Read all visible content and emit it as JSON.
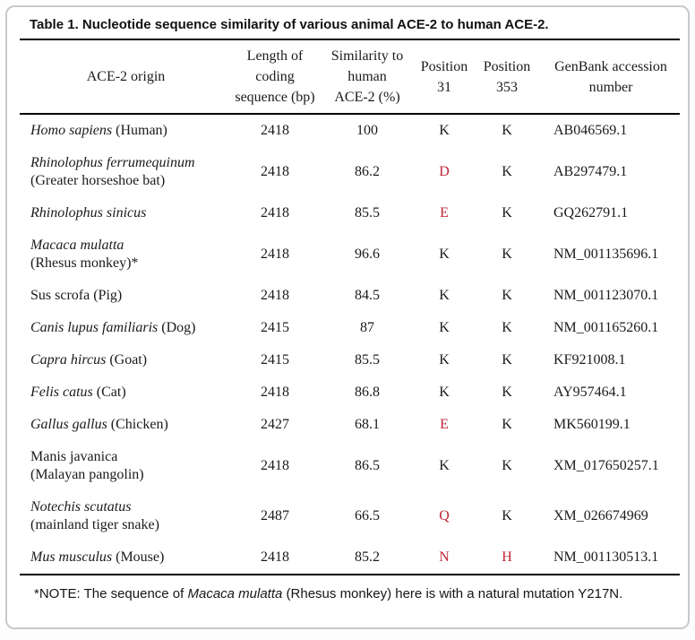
{
  "title": "Table 1. Nucleotide sequence similarity of various animal ACE-2 to human ACE-2.",
  "colors": {
    "red": "#c02538",
    "frame_border": "#c9c9c9",
    "rule": "#000000"
  },
  "table": {
    "columns": [
      {
        "label": "ACE-2 origin"
      },
      {
        "label": "Length of\ncoding\nsequence (bp)"
      },
      {
        "label": "Similarity to\nhuman\nACE-2 (%)"
      },
      {
        "label": "Position\n31"
      },
      {
        "label": "Position\n353"
      },
      {
        "label": "GenBank accession\nnumber"
      }
    ],
    "rows": [
      {
        "origin_segments": [
          {
            "text": "Homo sapiens",
            "italic": true
          },
          {
            "text": " (Human)",
            "italic": false
          }
        ],
        "origin_line2": "",
        "length_bp": "2418",
        "similarity_pct": "100",
        "position_31": {
          "text": "K",
          "red": false
        },
        "position_353": {
          "text": "K",
          "red": false
        },
        "genbank": "AB046569.1"
      },
      {
        "origin_segments": [
          {
            "text": "Rhinolophus ferrumequinum",
            "italic": true
          }
        ],
        "origin_line2": "(Greater horseshoe bat)",
        "length_bp": "2418",
        "similarity_pct": "86.2",
        "position_31": {
          "text": "D",
          "red": true
        },
        "position_353": {
          "text": "K",
          "red": false
        },
        "genbank": "AB297479.1"
      },
      {
        "origin_segments": [
          {
            "text": "Rhinolophus sinicus",
            "italic": true
          }
        ],
        "origin_line2": "",
        "length_bp": "2418",
        "similarity_pct": "85.5",
        "position_31": {
          "text": "E",
          "red": true
        },
        "position_353": {
          "text": "K",
          "red": false
        },
        "genbank": "GQ262791.1"
      },
      {
        "origin_segments": [
          {
            "text": "Macaca mulatta",
            "italic": true
          }
        ],
        "origin_line2": "(Rhesus monkey)*",
        "length_bp": "2418",
        "similarity_pct": "96.6",
        "position_31": {
          "text": "K",
          "red": false
        },
        "position_353": {
          "text": "K",
          "red": false
        },
        "genbank": "NM_001135696.1"
      },
      {
        "origin_segments": [
          {
            "text": "Sus scrofa (Pig)",
            "italic": false
          }
        ],
        "origin_line2": "",
        "length_bp": "2418",
        "similarity_pct": "84.5",
        "position_31": {
          "text": "K",
          "red": false
        },
        "position_353": {
          "text": "K",
          "red": false
        },
        "genbank": "NM_001123070.1"
      },
      {
        "origin_segments": [
          {
            "text": "Canis lupus familiaris",
            "italic": true
          },
          {
            "text": " (Dog)",
            "italic": false
          }
        ],
        "origin_line2": "",
        "length_bp": "2415",
        "similarity_pct": "87",
        "position_31": {
          "text": "K",
          "red": false
        },
        "position_353": {
          "text": "K",
          "red": false
        },
        "genbank": "NM_001165260.1"
      },
      {
        "origin_segments": [
          {
            "text": "Capra hircus",
            "italic": true
          },
          {
            "text": " (Goat)",
            "italic": false
          }
        ],
        "origin_line2": "",
        "length_bp": "2415",
        "similarity_pct": "85.5",
        "position_31": {
          "text": "K",
          "red": false
        },
        "position_353": {
          "text": "K",
          "red": false
        },
        "genbank": "KF921008.1"
      },
      {
        "origin_segments": [
          {
            "text": "Felis catus",
            "italic": true
          },
          {
            "text": " (Cat)",
            "italic": false
          }
        ],
        "origin_line2": "",
        "length_bp": "2418",
        "similarity_pct": "86.8",
        "position_31": {
          "text": "K",
          "red": false
        },
        "position_353": {
          "text": "K",
          "red": false
        },
        "genbank": "AY957464.1"
      },
      {
        "origin_segments": [
          {
            "text": "Gallus gallus",
            "italic": true
          },
          {
            "text": " (Chicken)",
            "italic": false
          }
        ],
        "origin_line2": "",
        "length_bp": "2427",
        "similarity_pct": "68.1",
        "position_31": {
          "text": "E",
          "red": true
        },
        "position_353": {
          "text": "K",
          "red": false
        },
        "genbank": "MK560199.1"
      },
      {
        "origin_segments": [
          {
            "text": "Manis javanica",
            "italic": false
          }
        ],
        "origin_line2": "(Malayan pangolin)",
        "length_bp": "2418",
        "similarity_pct": "86.5",
        "position_31": {
          "text": "K",
          "red": false
        },
        "position_353": {
          "text": "K",
          "red": false
        },
        "genbank": "XM_017650257.1"
      },
      {
        "origin_segments": [
          {
            "text": "Notechis scutatus",
            "italic": true
          }
        ],
        "origin_line2": "(mainland tiger snake)",
        "length_bp": "2487",
        "similarity_pct": "66.5",
        "position_31": {
          "text": "Q",
          "red": true
        },
        "position_353": {
          "text": "K",
          "red": false
        },
        "genbank": "XM_026674969"
      },
      {
        "origin_segments": [
          {
            "text": "Mus musculus",
            "italic": true
          },
          {
            "text": " (Mouse)",
            "italic": false
          }
        ],
        "origin_line2": "",
        "length_bp": "2418",
        "similarity_pct": "85.2",
        "position_31": {
          "text": "N",
          "red": true
        },
        "position_353": {
          "text": "H",
          "red": true
        },
        "genbank": "NM_001130513.1"
      }
    ]
  },
  "note": {
    "segments": [
      {
        "text": "*NOTE: The sequence of ",
        "italic": false
      },
      {
        "text": "Macaca mulatta",
        "italic": true
      },
      {
        "text": " (Rhesus monkey) here is with a natural mutation Y217N.",
        "italic": false
      }
    ]
  }
}
